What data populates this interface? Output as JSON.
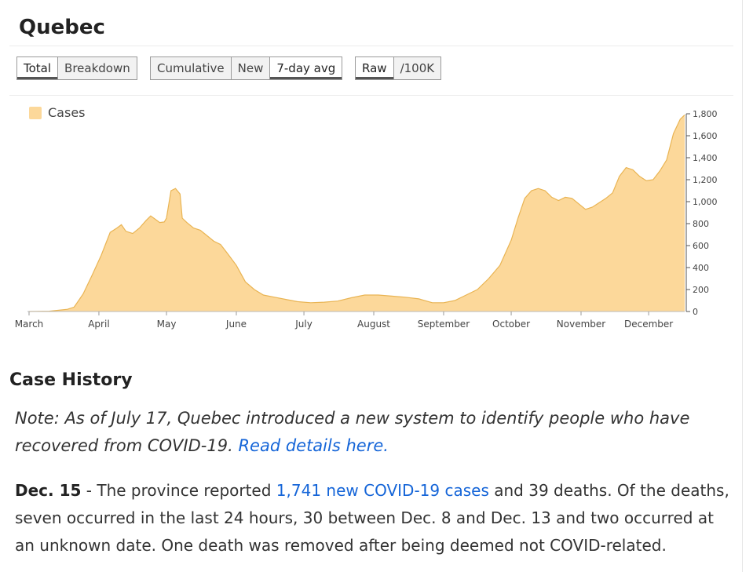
{
  "page_title": "Quebec",
  "controls": {
    "view_group": [
      {
        "label": "Total",
        "active": true
      },
      {
        "label": "Breakdown",
        "active": false
      }
    ],
    "mode_group": [
      {
        "label": "Cumulative",
        "active": false
      },
      {
        "label": "New",
        "active": false
      },
      {
        "label": "7-day avg",
        "active": true
      }
    ],
    "scale_group": [
      {
        "label": "Raw",
        "active": true
      },
      {
        "label": "/100K",
        "active": false
      }
    ]
  },
  "colors": {
    "series_fill": "#fcd89a",
    "series_stroke": "#e9b453",
    "link": "#1565d8"
  },
  "chart_data": {
    "type": "area",
    "legend": {
      "entries": [
        "Cases"
      ],
      "placement": "top-left"
    },
    "ylim": [
      0,
      1800
    ],
    "y_ticks": [
      0,
      200,
      400,
      600,
      800,
      1000,
      1200,
      1400,
      1600,
      1800
    ],
    "y_tick_labels": [
      "0",
      "200",
      "400",
      "600",
      "800",
      "1,000",
      "1,200",
      "1,400",
      "1,600",
      "1,800"
    ],
    "y_axis_position": "right",
    "x_ticks": [
      {
        "label": "March",
        "date": "2020-03-01"
      },
      {
        "label": "April",
        "date": "2020-04-01"
      },
      {
        "label": "May",
        "date": "2020-05-01"
      },
      {
        "label": "June",
        "date": "2020-06-01"
      },
      {
        "label": "July",
        "date": "2020-07-01"
      },
      {
        "label": "August",
        "date": "2020-08-01"
      },
      {
        "label": "September",
        "date": "2020-09-01"
      },
      {
        "label": "October",
        "date": "2020-10-01"
      },
      {
        "label": "November",
        "date": "2020-11-01"
      },
      {
        "label": "December",
        "date": "2020-12-01"
      }
    ],
    "series": [
      {
        "name": "Cases",
        "points": [
          [
            "2020-03-01",
            0
          ],
          [
            "2020-03-10",
            3
          ],
          [
            "2020-03-18",
            20
          ],
          [
            "2020-03-21",
            40
          ],
          [
            "2020-03-25",
            160
          ],
          [
            "2020-03-29",
            330
          ],
          [
            "2020-04-02",
            510
          ],
          [
            "2020-04-06",
            720
          ],
          [
            "2020-04-09",
            760
          ],
          [
            "2020-04-11",
            790
          ],
          [
            "2020-04-13",
            730
          ],
          [
            "2020-04-16",
            710
          ],
          [
            "2020-04-19",
            760
          ],
          [
            "2020-04-22",
            830
          ],
          [
            "2020-04-24",
            870
          ],
          [
            "2020-04-26",
            840
          ],
          [
            "2020-04-28",
            810
          ],
          [
            "2020-04-30",
            815
          ],
          [
            "2020-05-01",
            850
          ],
          [
            "2020-05-03",
            1100
          ],
          [
            "2020-05-05",
            1120
          ],
          [
            "2020-05-07",
            1070
          ],
          [
            "2020-05-08",
            850
          ],
          [
            "2020-05-10",
            810
          ],
          [
            "2020-05-13",
            760
          ],
          [
            "2020-05-16",
            740
          ],
          [
            "2020-05-19",
            690
          ],
          [
            "2020-05-22",
            640
          ],
          [
            "2020-05-25",
            610
          ],
          [
            "2020-05-28",
            530
          ],
          [
            "2020-06-01",
            420
          ],
          [
            "2020-06-05",
            270
          ],
          [
            "2020-06-09",
            200
          ],
          [
            "2020-06-13",
            150
          ],
          [
            "2020-06-18",
            130
          ],
          [
            "2020-06-23",
            110
          ],
          [
            "2020-06-28",
            90
          ],
          [
            "2020-07-04",
            80
          ],
          [
            "2020-07-10",
            85
          ],
          [
            "2020-07-16",
            95
          ],
          [
            "2020-07-22",
            125
          ],
          [
            "2020-07-28",
            150
          ],
          [
            "2020-08-03",
            150
          ],
          [
            "2020-08-09",
            140
          ],
          [
            "2020-08-15",
            130
          ],
          [
            "2020-08-21",
            115
          ],
          [
            "2020-08-27",
            80
          ],
          [
            "2020-09-01",
            80
          ],
          [
            "2020-09-06",
            100
          ],
          [
            "2020-09-11",
            150
          ],
          [
            "2020-09-16",
            200
          ],
          [
            "2020-09-21",
            300
          ],
          [
            "2020-09-26",
            420
          ],
          [
            "2020-10-01",
            650
          ],
          [
            "2020-10-04",
            850
          ],
          [
            "2020-10-07",
            1030
          ],
          [
            "2020-10-10",
            1100
          ],
          [
            "2020-10-13",
            1120
          ],
          [
            "2020-10-16",
            1100
          ],
          [
            "2020-10-19",
            1040
          ],
          [
            "2020-10-22",
            1010
          ],
          [
            "2020-10-25",
            1040
          ],
          [
            "2020-10-28",
            1030
          ],
          [
            "2020-10-31",
            980
          ],
          [
            "2020-11-03",
            930
          ],
          [
            "2020-11-06",
            950
          ],
          [
            "2020-11-09",
            990
          ],
          [
            "2020-11-12",
            1030
          ],
          [
            "2020-11-15",
            1080
          ],
          [
            "2020-11-18",
            1230
          ],
          [
            "2020-11-21",
            1310
          ],
          [
            "2020-11-24",
            1290
          ],
          [
            "2020-11-27",
            1230
          ],
          [
            "2020-11-30",
            1190
          ],
          [
            "2020-12-03",
            1200
          ],
          [
            "2020-12-06",
            1280
          ],
          [
            "2020-12-09",
            1380
          ],
          [
            "2020-12-12",
            1620
          ],
          [
            "2020-12-15",
            1750
          ],
          [
            "2020-12-17",
            1790
          ]
        ]
      }
    ]
  },
  "case_history": {
    "heading": "Case History",
    "note_text": "Note:  As of July 17, Quebec introduced a new system to identify people who have recovered from COVID-19. ",
    "note_link": "Read details here.",
    "entry_date": "Dec. 15",
    "entry_sep": " - The province reported ",
    "entry_link": "1,741 new COVID-19 cases",
    "entry_rest": " and 39 deaths. Of the deaths, seven occurred in the last 24 hours, 30 between Dec. 8 and Dec. 13 and two occurred at an unknown date. One death was removed after being deemed not COVID-related."
  }
}
